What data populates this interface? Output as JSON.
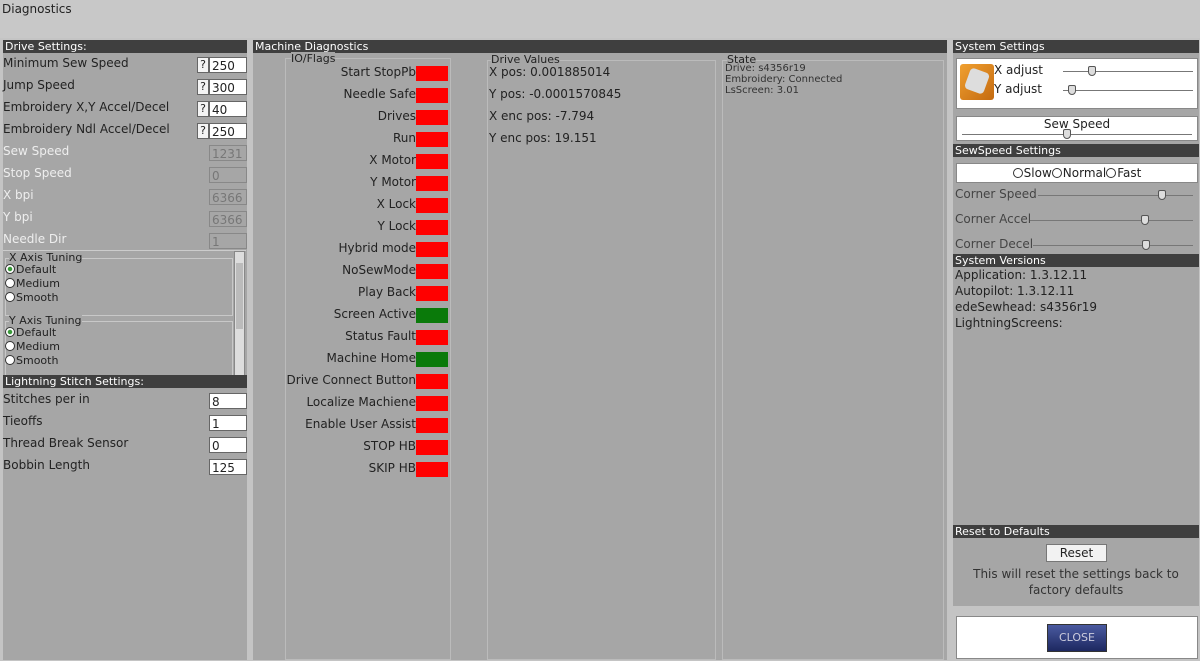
{
  "window_title": "Diagnostics",
  "drive_settings": {
    "title": "Drive Settings:",
    "fields": [
      {
        "label": "Minimum Sew Speed",
        "help": "?",
        "value": "250"
      },
      {
        "label": "Jump Speed",
        "help": "?",
        "value": "300"
      },
      {
        "label": "Embroidery X,Y Accel/Decel",
        "help": "?",
        "value": "40"
      },
      {
        "label": "Embroidery Ndl Accel/Decel",
        "help": "?",
        "value": "250"
      }
    ],
    "readonly_fields": [
      {
        "label": "Sew Speed",
        "value": "1231"
      },
      {
        "label": "Stop Speed",
        "value": "0"
      },
      {
        "label": "X bpi",
        "value": "6366"
      },
      {
        "label": "Y bpi",
        "value": "6366"
      },
      {
        "label": "Needle Dir",
        "value": "1"
      }
    ],
    "tuning": [
      {
        "title": "X Axis Tuning",
        "options": [
          "Default",
          "Medium",
          "Smooth"
        ]
      },
      {
        "title": "Y Axis Tuning",
        "options": [
          "Default",
          "Medium",
          "Smooth"
        ]
      }
    ]
  },
  "lightning_stitch": {
    "title": "Lightning Stitch Settings:",
    "fields": [
      {
        "label": "Stitches per in",
        "value": "8"
      },
      {
        "label": "Tieoffs",
        "value": "1"
      },
      {
        "label": "Thread Break Sensor",
        "value": "0"
      },
      {
        "label": "Bobbin Length",
        "value": "125"
      }
    ]
  },
  "machine_diagnostics": {
    "title": "Machine Diagnostics",
    "io_title": "IO/Flags",
    "flags": [
      {
        "label": "Start StopPb",
        "status": "off"
      },
      {
        "label": "Needle Safe",
        "status": "off"
      },
      {
        "label": "Drives",
        "status": "off"
      },
      {
        "label": "Run",
        "status": "off"
      },
      {
        "label": "X Motor",
        "status": "off"
      },
      {
        "label": "Y Motor",
        "status": "off"
      },
      {
        "label": "X Lock",
        "status": "off"
      },
      {
        "label": "Y Lock",
        "status": "off"
      },
      {
        "label": "Hybrid mode",
        "status": "off"
      },
      {
        "label": "NoSewMode",
        "status": "off"
      },
      {
        "label": "Play Back",
        "status": "off"
      },
      {
        "label": "Screen Active",
        "status": "on"
      },
      {
        "label": "Status Fault",
        "status": "off"
      },
      {
        "label": "Machine Home",
        "status": "on"
      },
      {
        "label": "ess Drive Connect Button",
        "status": "off"
      },
      {
        "label": "Localize Machiene",
        "status": "off"
      },
      {
        "label": "Enable User Assist",
        "status": "off"
      },
      {
        "label": "STOP HB",
        "status": "off"
      },
      {
        "label": "SKIP HB",
        "status": "off"
      }
    ],
    "drive_values_title": "Drive Values",
    "drive_values": [
      "X pos: 0.001885014",
      "Y pos: -0.0001570845",
      "X enc pos: -7.794",
      "Y enc pos: 19.151"
    ],
    "state_title": "State",
    "state": [
      "Drive: s4356r19",
      "Embroidery: Connected",
      "LsScreen: 3.01"
    ]
  },
  "system_settings": {
    "title": "System Settings",
    "adjust": [
      "X adjust",
      "Y adjust"
    ],
    "sew_speed": "Sew Speed",
    "sewspeed_title": "SewSpeed Settings",
    "speed_options": [
      "Slow",
      "Normal",
      "Fast"
    ],
    "corner": [
      "Corner Speed",
      "Corner Accel",
      "Corner Decel"
    ],
    "versions_title": "System Versions",
    "versions": [
      "Application: 1.3.12.11",
      "Autopilot: 1.3.12.11",
      "edeSewhead: s4356r19",
      "LightningScreens:"
    ],
    "reset_title": "Reset to Defaults",
    "reset_button": "Reset",
    "reset_note": "This will reset the settings back to factory defaults",
    "close_button": "CLOSE"
  }
}
